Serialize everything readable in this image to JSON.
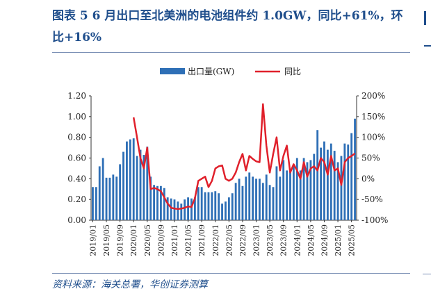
{
  "figure": {
    "title": "图表 5   6 月出口至北美洲的电池组件约 1.0GW，同比+61%，环比+16%",
    "source": "资料来源：海关总署，华创证券测算"
  },
  "colors": {
    "bar": "#2e6fb6",
    "line": "#e0202b",
    "axis": "#333333",
    "title": "#1f4e8c"
  },
  "chart_data": {
    "type": "bar",
    "title": "",
    "xlabel": "",
    "ylabel": "",
    "y2label": "",
    "ylim": [
      0,
      1.2
    ],
    "yticks": [
      "0.00",
      "0.20",
      "0.40",
      "0.60",
      "0.80",
      "1.00",
      "1.20"
    ],
    "y2lim": [
      -100,
      200
    ],
    "y2ticks": [
      "-100%",
      "-50%",
      "0%",
      "50%",
      "100%",
      "150%",
      "200%"
    ],
    "legend_position": "top-center",
    "xtick_labels": [
      "2019/01",
      "2019/05",
      "2019/09",
      "2020/01",
      "2020/05",
      "2020/09",
      "2021/01",
      "2021/05",
      "2021/09",
      "2022/01",
      "2022/05",
      "2022/09",
      "2023/01",
      "2023/05",
      "2023/09",
      "2024/01",
      "2024/05",
      "2024/09",
      "2025/01",
      "2025/05"
    ],
    "categories": [
      "2019/01",
      "2019/02",
      "2019/03",
      "2019/04",
      "2019/05",
      "2019/06",
      "2019/07",
      "2019/08",
      "2019/09",
      "2019/10",
      "2019/11",
      "2019/12",
      "2020/01",
      "2020/02",
      "2020/03",
      "2020/04",
      "2020/05",
      "2020/06",
      "2020/07",
      "2020/08",
      "2020/09",
      "2020/10",
      "2020/11",
      "2020/12",
      "2021/01",
      "2021/02",
      "2021/03",
      "2021/04",
      "2021/05",
      "2021/06",
      "2021/07",
      "2021/08",
      "2021/09",
      "2021/10",
      "2021/11",
      "2021/12",
      "2022/01",
      "2022/02",
      "2022/03",
      "2022/04",
      "2022/05",
      "2022/06",
      "2022/07",
      "2022/08",
      "2022/09",
      "2022/10",
      "2022/11",
      "2022/12",
      "2023/01",
      "2023/02",
      "2023/03",
      "2023/04",
      "2023/05",
      "2023/06",
      "2023/07",
      "2023/08",
      "2023/09",
      "2023/10",
      "2023/11",
      "2023/12",
      "2024/01",
      "2024/02",
      "2024/03",
      "2024/04",
      "2024/05",
      "2024/06",
      "2024/07",
      "2024/08",
      "2024/09",
      "2024/10",
      "2024/11",
      "2024/12",
      "2025/01",
      "2025/02",
      "2025/03",
      "2025/04",
      "2025/05",
      "2025/06"
    ],
    "series": [
      {
        "name": "出口量(GW)",
        "type": "bar",
        "axis": "left",
        "values": [
          0.32,
          0.32,
          0.52,
          0.6,
          0.41,
          0.41,
          0.44,
          0.42,
          0.54,
          0.66,
          0.76,
          0.78,
          0.79,
          0.62,
          0.68,
          0.63,
          0.71,
          0.42,
          0.34,
          0.33,
          0.33,
          0.31,
          0.22,
          0.21,
          0.2,
          0.18,
          0.16,
          0.2,
          0.22,
          0.21,
          0.22,
          0.32,
          0.32,
          0.27,
          0.27,
          0.27,
          0.28,
          0.26,
          0.16,
          0.18,
          0.22,
          0.26,
          0.36,
          0.4,
          0.33,
          0.42,
          0.46,
          0.42,
          0.4,
          0.4,
          0.36,
          0.44,
          0.34,
          0.32,
          0.52,
          0.42,
          0.58,
          0.48,
          0.48,
          0.52,
          0.6,
          0.48,
          0.6,
          0.56,
          0.58,
          0.64,
          0.87,
          0.7,
          0.76,
          0.68,
          0.74,
          0.67,
          0.56,
          0.62,
          0.74,
          0.73,
          0.84,
          0.98
        ]
      },
      {
        "name": "同比",
        "type": "line",
        "axis": "right",
        "values": [
          null,
          null,
          null,
          null,
          null,
          null,
          null,
          null,
          null,
          null,
          null,
          null,
          148,
          100,
          50,
          25,
          75,
          -25,
          -22,
          -25,
          -30,
          -45,
          -60,
          -70,
          -72,
          -73,
          -72,
          -70,
          -67,
          -68,
          -47,
          -5,
          0,
          5,
          -20,
          -5,
          25,
          30,
          32,
          0,
          -5,
          0,
          15,
          40,
          60,
          20,
          55,
          48,
          42,
          40,
          180,
          80,
          15,
          60,
          100,
          20,
          55,
          80,
          15,
          35,
          20,
          0,
          40,
          5,
          25,
          30,
          20,
          50,
          40,
          10,
          55,
          20,
          25,
          -15,
          40,
          50,
          55,
          61
        ]
      }
    ]
  }
}
